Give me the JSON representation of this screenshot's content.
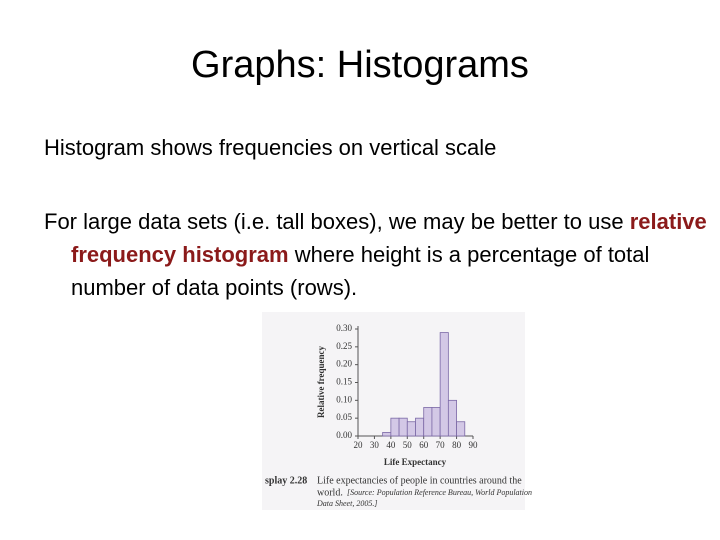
{
  "title": "Graphs: Histograms",
  "paragraphs": [
    {
      "parts": [
        "Histogram shows frequencies on vertical scale"
      ]
    },
    {
      "parts": [
        "For large data sets (i.e. tall boxes), we may be better to use ",
        "relative frequency histogram",
        " where height is a percentage of total number of data points (rows)."
      ]
    }
  ],
  "figure": {
    "caption_label": "splay 2.28",
    "caption_lines": [
      "Life expectancies of people in countries around the",
      "world."
    ],
    "source_lines": [
      "[Source: Population Reference Bureau, World Population",
      "Data Sheet, 2005.]"
    ],
    "chart_data": {
      "type": "histogram",
      "x_label": "Life Expectancy",
      "y_label": "Relative frequency",
      "bins": [
        35,
        40,
        45,
        50,
        55,
        60,
        65,
        70,
        75,
        80,
        85
      ],
      "values": [
        0.01,
        0.05,
        0.05,
        0.04,
        0.05,
        0.08,
        0.08,
        0.29,
        0.1,
        0.04
      ],
      "color": "#d3c8e6",
      "edge_color": "#7b68a6",
      "xlim": [
        20,
        90
      ],
      "xticks": [
        20,
        30,
        40,
        50,
        60,
        70,
        80,
        90
      ],
      "ylim": [
        0,
        0.3
      ],
      "yticks": [
        {
          "value": 0,
          "label": "0.00"
        },
        {
          "value": 0.05,
          "label": "0.05"
        },
        {
          "value": 0.1,
          "label": "0.10"
        },
        {
          "value": 0.15,
          "label": "0.15"
        },
        {
          "value": 0.2,
          "label": "0.20"
        },
        {
          "value": 0.25,
          "label": "0.25"
        },
        {
          "value": 0.3,
          "label": "0.30"
        }
      ]
    }
  }
}
